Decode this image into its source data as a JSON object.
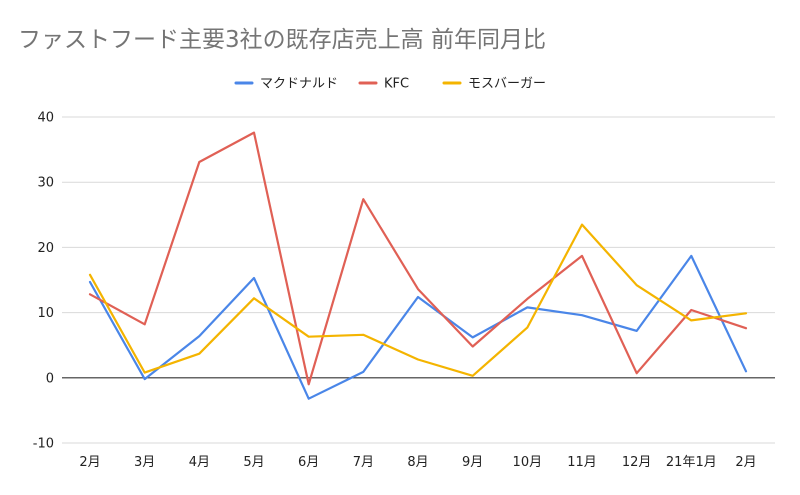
{
  "chart_data": {
    "type": "line",
    "title": "ファストフード主要3社の既存店売上高 前年同月比",
    "xlabel": "",
    "ylabel": "",
    "categories": [
      "2月",
      "3月",
      "4月",
      "5月",
      "6月",
      "7月",
      "8月",
      "9月",
      "10月",
      "11月",
      "12月",
      "21年1月",
      "2月"
    ],
    "ylim": [
      -10,
      40
    ],
    "yticks": [
      -10,
      0,
      10,
      20,
      30,
      40
    ],
    "grid": true,
    "legend_position": "top-center",
    "series": [
      {
        "name": "マクドナルド",
        "color": "#4a86e8",
        "values": [
          14.7,
          -0.2,
          6.4,
          15.3,
          -3.2,
          0.9,
          12.4,
          6.2,
          10.8,
          9.6,
          7.2,
          18.7,
          1.0
        ]
      },
      {
        "name": "KFC",
        "color": "#e06055",
        "values": [
          12.8,
          8.2,
          33.1,
          37.6,
          -1.0,
          27.4,
          13.6,
          4.8,
          12.1,
          18.7,
          0.7,
          10.4,
          7.6
        ]
      },
      {
        "name": "モスバーガー",
        "color": "#f4b400",
        "values": [
          15.8,
          0.8,
          3.7,
          12.2,
          6.3,
          6.6,
          2.8,
          0.3,
          7.7,
          23.5,
          14.2,
          8.8,
          9.9
        ]
      }
    ]
  }
}
